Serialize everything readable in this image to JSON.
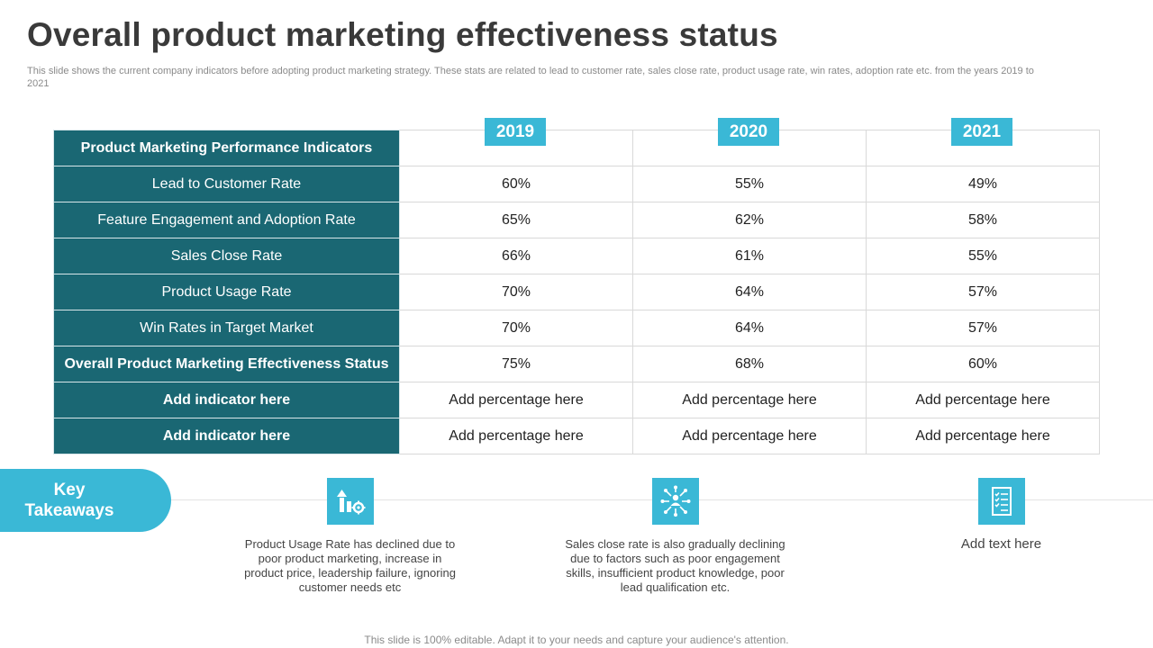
{
  "title": "Overall product marketing effectiveness status",
  "subtitle": "This slide shows the current company indicators before adopting product marketing strategy. These stats are related to lead to customer rate, sales close rate, product usage rate, win rates, adoption rate etc. from the years 2019 to 2021",
  "table": {
    "header": "Product Marketing Performance Indicators",
    "years": [
      "2019",
      "2020",
      "2021"
    ],
    "rows": [
      {
        "indicator": "Lead to Customer Rate",
        "values": [
          "60%",
          "55%",
          "49%"
        ]
      },
      {
        "indicator": "Feature Engagement and Adoption Rate",
        "values": [
          "65%",
          "62%",
          "58%"
        ]
      },
      {
        "indicator": "Sales Close Rate",
        "values": [
          "66%",
          "61%",
          "55%"
        ]
      },
      {
        "indicator": "Product Usage Rate",
        "values": [
          "70%",
          "64%",
          "57%"
        ]
      },
      {
        "indicator": "Win Rates in Target Market",
        "values": [
          "70%",
          "64%",
          "57%"
        ]
      },
      {
        "indicator": "Overall Product Marketing Effectiveness Status",
        "values": [
          "75%",
          "68%",
          "60%"
        ]
      },
      {
        "indicator": "Add indicator here",
        "values": [
          "Add percentage here",
          "Add percentage here",
          "Add percentage here"
        ]
      },
      {
        "indicator": "Add indicator here",
        "values": [
          "Add percentage here",
          "Add percentage here",
          "Add percentage here"
        ]
      }
    ]
  },
  "key_takeaways": {
    "label_line1": "Key",
    "label_line2": "Takeaways",
    "items": [
      {
        "icon": "growth-chart-gear-icon",
        "text": "Product Usage Rate has declined due to poor product marketing, increase in product price, leadership failure, ignoring customer needs etc"
      },
      {
        "icon": "network-people-icon",
        "text": "Sales close rate is also gradually declining due to factors such as poor engagement skills, insufficient product knowledge, poor lead qualification etc."
      },
      {
        "icon": "checklist-document-icon",
        "text": "Add text here"
      }
    ]
  },
  "footer": "This slide is 100% editable. Adapt it to your needs and capture your audience's attention."
}
